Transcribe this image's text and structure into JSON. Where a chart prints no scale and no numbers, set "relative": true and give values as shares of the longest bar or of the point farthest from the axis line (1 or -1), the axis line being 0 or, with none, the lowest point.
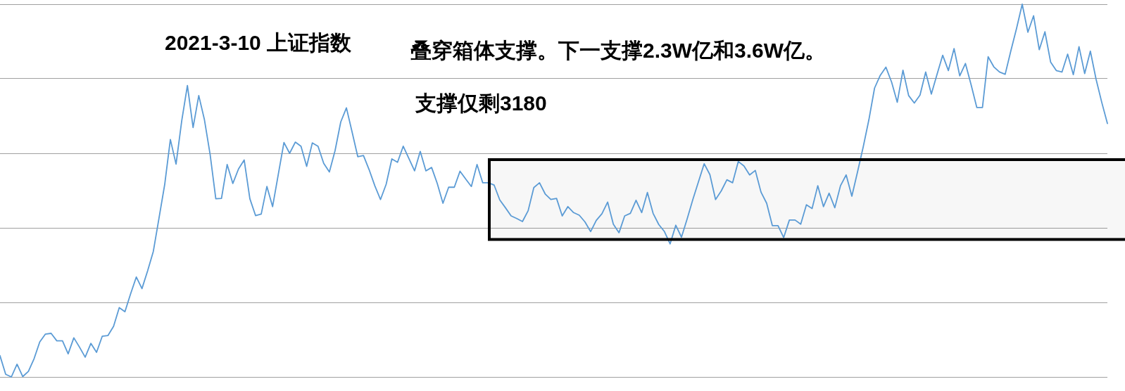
{
  "chart_data": {
    "type": "line",
    "title": "2021-3-10 上证指数",
    "annotations": [
      "叠穿箱体支撑。下一支撑2.3W亿和3.6W亿。",
      "支撑仅剩3180"
    ],
    "relative": true,
    "grid": "y",
    "color": "#5b9bd5",
    "bands": [
      {
        "axis": "y",
        "from": 0.369,
        "to": 0.583,
        "color": "#000000"
      }
    ],
    "categories": [
      null,
      null,
      null,
      null,
      null,
      null,
      null,
      null,
      null,
      null,
      null,
      null,
      null,
      null,
      null,
      null,
      null,
      null,
      null,
      null,
      null,
      null,
      null,
      null,
      null,
      null,
      null,
      null,
      null,
      null,
      null,
      null,
      null,
      null,
      null,
      null,
      null,
      null,
      null,
      null,
      null,
      null,
      null,
      null,
      null,
      null,
      null,
      null,
      null,
      null,
      null,
      null,
      null,
      null,
      null,
      null,
      null,
      null,
      null,
      null,
      null,
      null,
      null,
      null,
      null,
      null,
      null,
      null,
      null,
      null,
      null,
      null,
      null,
      null,
      null,
      null,
      null,
      null,
      null,
      null,
      null,
      null,
      null,
      null,
      null,
      null,
      null,
      null,
      null,
      null,
      null,
      null,
      null,
      null,
      null,
      null,
      null,
      null,
      null,
      null,
      null,
      null,
      null,
      null,
      null,
      null,
      null,
      null,
      null,
      null,
      null,
      null,
      null,
      null,
      null,
      null,
      null,
      null,
      null,
      null,
      null,
      null,
      null,
      null,
      null,
      null,
      null,
      null,
      null,
      null,
      null,
      null,
      null,
      null,
      null,
      null,
      null,
      null,
      null,
      null,
      null,
      null,
      null,
      null,
      null,
      null,
      null,
      null,
      null,
      null,
      null,
      null,
      null,
      null,
      null,
      null,
      null,
      null,
      null,
      null,
      null,
      null,
      null,
      null,
      null,
      null,
      null,
      null,
      null,
      null,
      null,
      null,
      null,
      null,
      null,
      null,
      null,
      null,
      null,
      null,
      null,
      null,
      null,
      null,
      null,
      null,
      null,
      null,
      null,
      null,
      null,
      null,
      null,
      null,
      null,
      null
    ],
    "values": [
      0.057,
      0.007,
      0,
      0.034,
      0.001,
      0.015,
      0.049,
      0.094,
      0.115,
      0.117,
      0.097,
      0.097,
      0.062,
      0.105,
      0.08,
      0.053,
      0.09,
      0.066,
      0.109,
      0.111,
      0.136,
      0.186,
      0.175,
      0.223,
      0.268,
      0.237,
      0.285,
      0.337,
      0.426,
      0.516,
      0.637,
      0.571,
      0.687,
      0.782,
      0.669,
      0.755,
      0.69,
      0.597,
      0.478,
      0.479,
      0.57,
      0.519,
      0.558,
      0.582,
      0.478,
      0.433,
      0.437,
      0.511,
      0.457,
      0.543,
      0.629,
      0.6,
      0.63,
      0.619,
      0.565,
      0.628,
      0.619,
      0.573,
      0.55,
      0.607,
      0.684,
      0.722,
      0.657,
      0.591,
      0.594,
      0.556,
      0.513,
      0.476,
      0.517,
      0.585,
      0.576,
      0.619,
      0.586,
      0.553,
      0.605,
      0.553,
      0.562,
      0.519,
      0.466,
      0.509,
      0.509,
      0.552,
      0.531,
      0.511,
      0.57,
      0.521,
      0.521,
      0.515,
      0.475,
      0.454,
      0.432,
      0.425,
      0.417,
      0.446,
      0.508,
      0.521,
      0.491,
      0.476,
      0.479,
      0.432,
      0.457,
      0.441,
      0.434,
      0.416,
      0.39,
      0.42,
      0.438,
      0.469,
      0.41,
      0.387,
      0.432,
      0.439,
      0.474,
      0.441,
      0.495,
      0.439,
      0.409,
      0.39,
      0.357,
      0.407,
      0.375,
      0.424,
      0.476,
      0.524,
      0.572,
      0.543,
      0.476,
      0.499,
      0.529,
      0.521,
      0.578,
      0.566,
      0.542,
      0.554,
      0.496,
      0.466,
      0.406,
      0.406,
      0.374,
      0.421,
      0.421,
      0.41,
      0.462,
      0.452,
      0.513,
      0.457,
      0.493,
      0.454,
      0.513,
      0.542,
      0.485,
      0.55,
      0.617,
      0.69,
      0.775,
      0.809,
      0.831,
      0.791,
      0.737,
      0.823,
      0.755,
      0.735,
      0.756,
      0.818,
      0.759,
      0.812,
      0.863,
      0.822,
      0.881,
      0.808,
      0.841,
      0.784,
      0.723,
      0.723,
      0.859,
      0.832,
      0.818,
      0.812,
      0.875,
      0.935,
      1,
      0.925,
      0.969,
      0.878,
      0.926,
      0.845,
      0.822,
      0.818,
      0.866,
      0.811,
      0.886,
      0.814,
      0.874,
      0.799,
      0.737,
      0.68
    ]
  }
}
